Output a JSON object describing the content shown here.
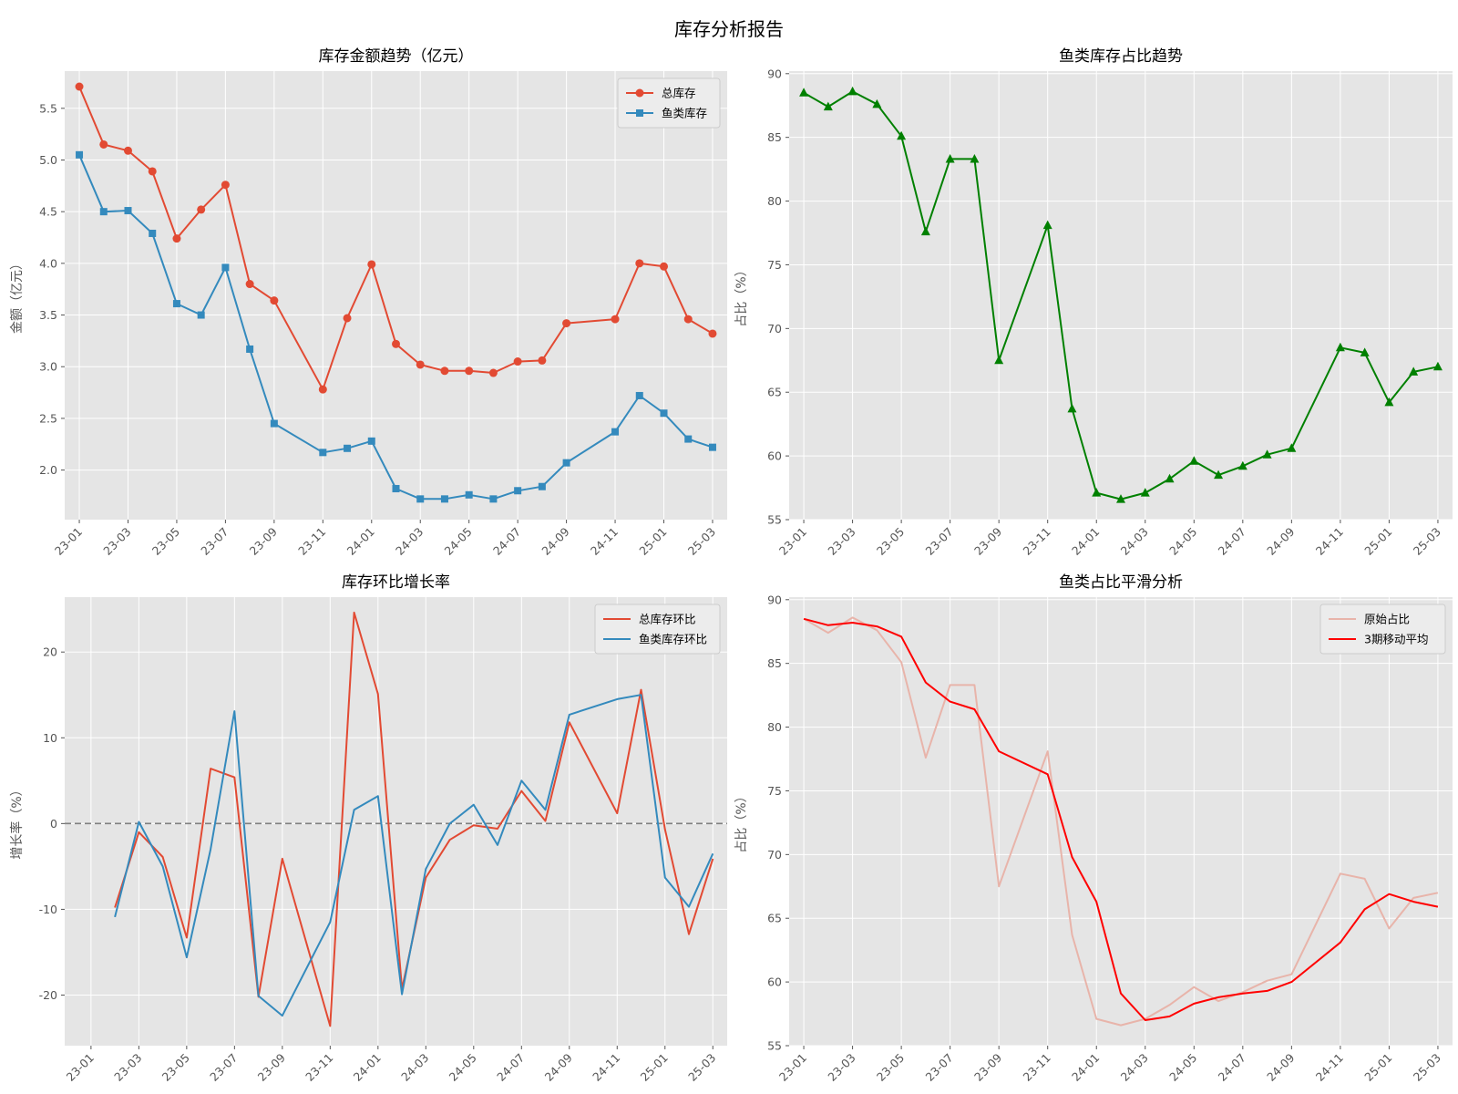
{
  "suptitle": "库存分析报告",
  "colors": {
    "panel_bg": "#e5e5e5",
    "grid": "#ffffff",
    "total": "#e24a33",
    "fish": "#348abd",
    "ratio": "#008000",
    "raw_ratio": "#e8b4aa",
    "moving_avg": "#ff0000",
    "zero_line": "#808080",
    "axis_text": "#555555",
    "title_text": "#000000"
  },
  "chart_data": [
    {
      "id": "amount",
      "type": "line",
      "title": "库存金额趋势（亿元）",
      "xlabel": "",
      "ylabel": "金额（亿元）",
      "xlim": [
        -0.6,
        26.6
      ],
      "ylim": [
        1.52,
        5.86
      ],
      "yticks": [
        2.0,
        2.5,
        3.0,
        3.5,
        4.0,
        4.5,
        5.0,
        5.5
      ],
      "yticklabels": [
        "2.0",
        "2.5",
        "3.0",
        "3.5",
        "4.0",
        "4.5",
        "5.0",
        "5.5"
      ],
      "xticks": [
        0,
        2,
        4,
        6,
        8,
        10,
        12,
        14,
        16,
        18,
        20,
        22,
        24,
        26
      ],
      "xticklabels": [
        "23-01",
        "23-03",
        "23-05",
        "23-07",
        "23-09",
        "23-11",
        "24-01",
        "24-03",
        "24-05",
        "24-07",
        "24-09",
        "24-11",
        "25-01",
        "25-03"
      ],
      "grid": true,
      "legend": "top-right",
      "series": [
        {
          "name": "总库存",
          "color_key": "total",
          "marker": "circle",
          "x": [
            0,
            1,
            2,
            3,
            4,
            5,
            6,
            7,
            8,
            10,
            11,
            12,
            13,
            14,
            15,
            16,
            17,
            18,
            19,
            20,
            22,
            23,
            24,
            25,
            26
          ],
          "y": [
            5.71,
            5.15,
            5.09,
            4.89,
            4.24,
            4.52,
            4.76,
            3.8,
            3.64,
            2.78,
            3.47,
            3.99,
            3.22,
            3.02,
            2.96,
            2.96,
            2.94,
            3.05,
            3.06,
            3.42,
            3.46,
            4.0,
            3.97,
            3.46,
            3.32
          ]
        },
        {
          "name": "鱼类库存",
          "color_key": "fish",
          "marker": "square",
          "x": [
            0,
            1,
            2,
            3,
            4,
            5,
            6,
            7,
            8,
            10,
            11,
            12,
            13,
            14,
            15,
            16,
            17,
            18,
            19,
            20,
            22,
            23,
            24,
            25,
            26
          ],
          "y": [
            5.05,
            4.5,
            4.51,
            4.29,
            3.61,
            3.5,
            3.96,
            3.17,
            2.45,
            2.17,
            2.21,
            2.28,
            1.82,
            1.72,
            1.72,
            1.76,
            1.72,
            1.8,
            1.84,
            2.07,
            2.37,
            2.72,
            2.55,
            2.3,
            2.22
          ]
        }
      ]
    },
    {
      "id": "ratio",
      "type": "line",
      "title": "鱼类库存占比趋势",
      "xlabel": "",
      "ylabel": "占比（%）",
      "xlim": [
        -0.6,
        26.6
      ],
      "ylim": [
        55.0,
        90.2
      ],
      "yticks": [
        55,
        60,
        65,
        70,
        75,
        80,
        85,
        90
      ],
      "yticklabels": [
        "55",
        "60",
        "65",
        "70",
        "75",
        "80",
        "85",
        "90"
      ],
      "xticks": [
        0,
        2,
        4,
        6,
        8,
        10,
        12,
        14,
        16,
        18,
        20,
        22,
        24,
        26
      ],
      "xticklabels": [
        "23-01",
        "23-03",
        "23-05",
        "23-07",
        "23-09",
        "23-11",
        "24-01",
        "24-03",
        "24-05",
        "24-07",
        "24-09",
        "24-11",
        "25-01",
        "25-03"
      ],
      "grid": true,
      "series": [
        {
          "name": "",
          "color_key": "ratio",
          "marker": "triangle",
          "x": [
            0,
            1,
            2,
            3,
            4,
            5,
            6,
            7,
            8,
            10,
            11,
            12,
            13,
            14,
            15,
            16,
            17,
            18,
            19,
            20,
            22,
            23,
            24,
            25,
            26
          ],
          "y": [
            88.5,
            87.4,
            88.6,
            87.6,
            85.1,
            77.6,
            83.3,
            83.3,
            67.5,
            78.1,
            63.7,
            57.1,
            56.6,
            57.1,
            58.2,
            59.6,
            58.5,
            59.2,
            60.1,
            60.6,
            68.5,
            68.1,
            64.2,
            66.6,
            67.0
          ]
        }
      ]
    },
    {
      "id": "growth",
      "type": "line",
      "title": "库存环比增长率",
      "xlabel": "",
      "ylabel": "增长率（%）",
      "xlim": [
        -1.1,
        26.6
      ],
      "ylim": [
        -25.9,
        26.4
      ],
      "yticks": [
        -20,
        -10,
        0,
        10,
        20
      ],
      "yticklabels": [
        "-20",
        "-10",
        "0",
        "10",
        "20"
      ],
      "xticks": [
        0,
        2,
        4,
        6,
        8,
        10,
        12,
        14,
        16,
        18,
        20,
        22,
        24,
        26
      ],
      "xticklabels": [
        "23-01",
        "23-03",
        "23-05",
        "23-07",
        "23-09",
        "23-11",
        "24-01",
        "24-03",
        "24-05",
        "24-07",
        "24-09",
        "24-11",
        "25-01",
        "25-03"
      ],
      "grid": true,
      "legend": "top-right",
      "reference_line": 0,
      "series": [
        {
          "name": "总库存环比",
          "color_key": "total",
          "x": [
            1,
            2,
            3,
            4,
            5,
            6,
            7,
            8,
            10,
            11,
            12,
            13,
            14,
            15,
            16,
            17,
            18,
            19,
            20,
            22,
            23,
            24,
            25,
            26
          ],
          "y": [
            -9.8,
            -1.0,
            -3.9,
            -13.3,
            6.4,
            5.4,
            -20.2,
            -4.1,
            -23.6,
            24.6,
            15.1,
            -19.3,
            -6.3,
            -1.9,
            -0.2,
            -0.6,
            3.8,
            0.3,
            11.8,
            1.2,
            15.6,
            -0.7,
            -12.9,
            -4.1
          ]
        },
        {
          "name": "鱼类库存环比",
          "color_key": "fish",
          "x": [
            1,
            2,
            3,
            4,
            5,
            6,
            7,
            8,
            10,
            11,
            12,
            13,
            14,
            15,
            16,
            17,
            18,
            19,
            20,
            22,
            23,
            24,
            25,
            26
          ],
          "y": [
            -10.9,
            0.2,
            -5.0,
            -15.6,
            -3.0,
            13.1,
            -20.1,
            -22.4,
            -11.5,
            1.6,
            3.2,
            -19.9,
            -5.3,
            0.0,
            2.2,
            -2.5,
            5.0,
            1.6,
            12.7,
            14.5,
            15.0,
            -6.3,
            -9.7,
            -3.5
          ]
        }
      ]
    },
    {
      "id": "smooth",
      "type": "line",
      "title": "鱼类占比平滑分析",
      "xlabel": "",
      "ylabel": "占比（%）",
      "xlim": [
        -0.6,
        26.6
      ],
      "ylim": [
        55.0,
        90.2
      ],
      "yticks": [
        55,
        60,
        65,
        70,
        75,
        80,
        85,
        90
      ],
      "yticklabels": [
        "55",
        "60",
        "65",
        "70",
        "75",
        "80",
        "85",
        "90"
      ],
      "xticks": [
        0,
        2,
        4,
        6,
        8,
        10,
        12,
        14,
        16,
        18,
        20,
        22,
        24,
        26
      ],
      "xticklabels": [
        "23-01",
        "23-03",
        "23-05",
        "23-07",
        "23-09",
        "23-11",
        "24-01",
        "24-03",
        "24-05",
        "24-07",
        "24-09",
        "24-11",
        "25-01",
        "25-03"
      ],
      "grid": true,
      "legend": "top-right",
      "series": [
        {
          "name": "原始占比",
          "color_key": "raw_ratio",
          "x": [
            0,
            1,
            2,
            3,
            4,
            5,
            6,
            7,
            8,
            10,
            11,
            12,
            13,
            14,
            15,
            16,
            17,
            18,
            19,
            20,
            22,
            23,
            24,
            25,
            26
          ],
          "y": [
            88.5,
            87.4,
            88.6,
            87.6,
            85.1,
            77.6,
            83.3,
            83.3,
            67.5,
            78.1,
            63.7,
            57.1,
            56.6,
            57.1,
            58.2,
            59.6,
            58.5,
            59.2,
            60.1,
            60.6,
            68.5,
            68.1,
            64.2,
            66.6,
            67.0
          ]
        },
        {
          "name": "3期移动平均",
          "color_key": "moving_avg",
          "x": [
            0,
            1,
            2,
            3,
            4,
            5,
            6,
            7,
            8,
            10,
            11,
            12,
            13,
            14,
            15,
            16,
            17,
            18,
            19,
            20,
            22,
            23,
            24,
            25,
            26
          ],
          "y": [
            88.5,
            88.0,
            88.2,
            87.9,
            87.1,
            83.5,
            82.0,
            81.4,
            78.1,
            76.3,
            69.8,
            66.3,
            59.1,
            57.0,
            57.3,
            58.3,
            58.8,
            59.1,
            59.3,
            60.0,
            63.1,
            65.7,
            66.9,
            66.3,
            65.9
          ]
        }
      ]
    }
  ]
}
